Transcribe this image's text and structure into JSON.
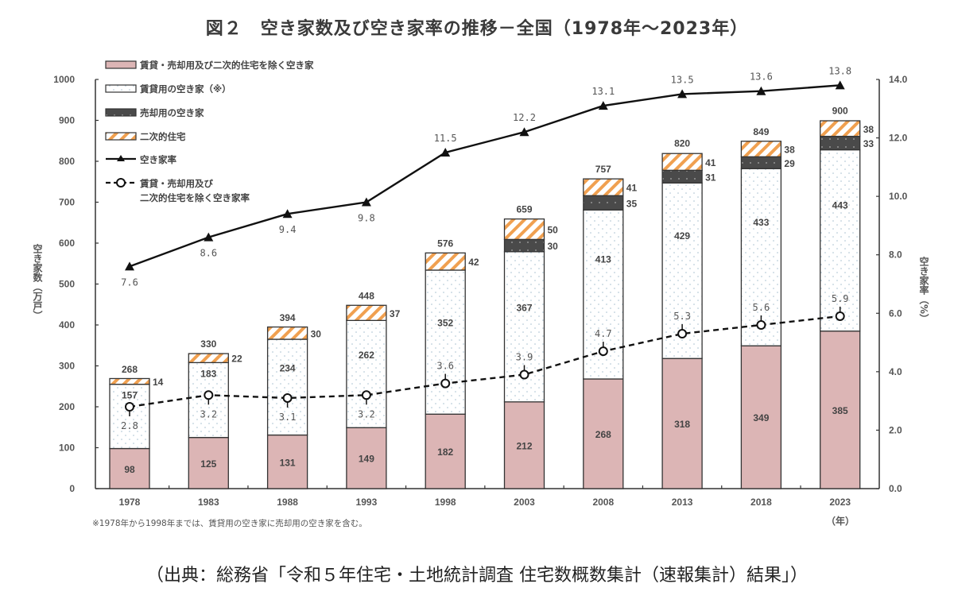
{
  "title": "図２　空き家数及び空き家率の推移－全国（1978年～2023年）",
  "footnote": "※1978年から1998年までは、賃貸用の空き家に売却用の空き家を含む。",
  "source": "（出典：総務省「令和５年住宅・土地統計調査 住宅数概数集計（速報集計）結果」）",
  "colors": {
    "other_vacant": "#dcb5b5",
    "rental": "#ffffff",
    "rental_dots": "#9fb8c8",
    "for_sale": "#4a4a4a",
    "secondary_stripe": "#f0a050",
    "line": "#111111"
  },
  "chart_data": {
    "type": "bar",
    "stacked": true,
    "title": "図２　空き家数及び空き家率の推移－全国（1978年～2023年）",
    "xlabel": "（年）",
    "ylabel": "空き家数（万戸）",
    "y2label": "空き家率（%）",
    "ylim": [
      0,
      1000
    ],
    "y2lim": [
      0,
      14
    ],
    "yticks": [
      "0",
      "100",
      "200",
      "300",
      "400",
      "500",
      "600",
      "700",
      "800",
      "900",
      "1000"
    ],
    "y2ticks": [
      "0.0",
      "2.0",
      "4.0",
      "6.0",
      "8.0",
      "10.0",
      "12.0",
      "14.0"
    ],
    "categories": [
      "1978",
      "1983",
      "1988",
      "1993",
      "1998",
      "2003",
      "2008",
      "2013",
      "2018",
      "2023"
    ],
    "totals": [
      268,
      330,
      394,
      448,
      576,
      659,
      757,
      820,
      849,
      900
    ],
    "series": [
      {
        "name": "賃貸・売却用及び二次的住宅を除く空き家",
        "kind": "bar",
        "values": [
          98,
          125,
          131,
          149,
          182,
          212,
          268,
          318,
          349,
          385
        ]
      },
      {
        "name": "賃貸用の空き家（※）",
        "kind": "bar",
        "values": [
          157,
          183,
          234,
          262,
          352,
          367,
          413,
          429,
          433,
          443
        ]
      },
      {
        "name": "売却用の空き家",
        "kind": "bar",
        "values": [
          null,
          null,
          null,
          null,
          null,
          30,
          35,
          31,
          29,
          33
        ]
      },
      {
        "name": "二次的住宅",
        "kind": "bar",
        "values": [
          14,
          22,
          30,
          37,
          42,
          50,
          41,
          41,
          38,
          38
        ]
      },
      {
        "name": "空き家率",
        "kind": "line",
        "axis": "right",
        "values": [
          7.6,
          8.6,
          9.4,
          9.8,
          11.5,
          12.2,
          13.1,
          13.5,
          13.6,
          13.8
        ]
      },
      {
        "name": "賃貸・売却用及び二次的住宅を除く空き家率",
        "kind": "line-dashed",
        "axis": "right",
        "values": [
          2.8,
          3.2,
          3.1,
          3.2,
          3.6,
          3.9,
          4.7,
          5.3,
          5.6,
          5.9
        ]
      }
    ],
    "value_labels_rate": [
      "7.6",
      "8.6",
      "9.4",
      "9.8",
      "11.5",
      "12.2",
      "13.1",
      "13.5",
      "13.6",
      "13.8"
    ],
    "value_labels_rate2": [
      "2.8",
      "3.2",
      "3.1",
      "3.2",
      "3.6",
      "3.9",
      "4.7",
      "5.3",
      "5.6",
      "5.9"
    ],
    "legend": {
      "placement": "top-left",
      "entries": [
        "賃貸・売却用及び二次的住宅を除く空き家",
        "賃貸用の空き家（※）",
        "売却用の空き家",
        "二次的住宅",
        "空き家率",
        "賃貸・売却用及び",
        "二次的住宅を除く空き家率"
      ]
    },
    "grid": false
  }
}
